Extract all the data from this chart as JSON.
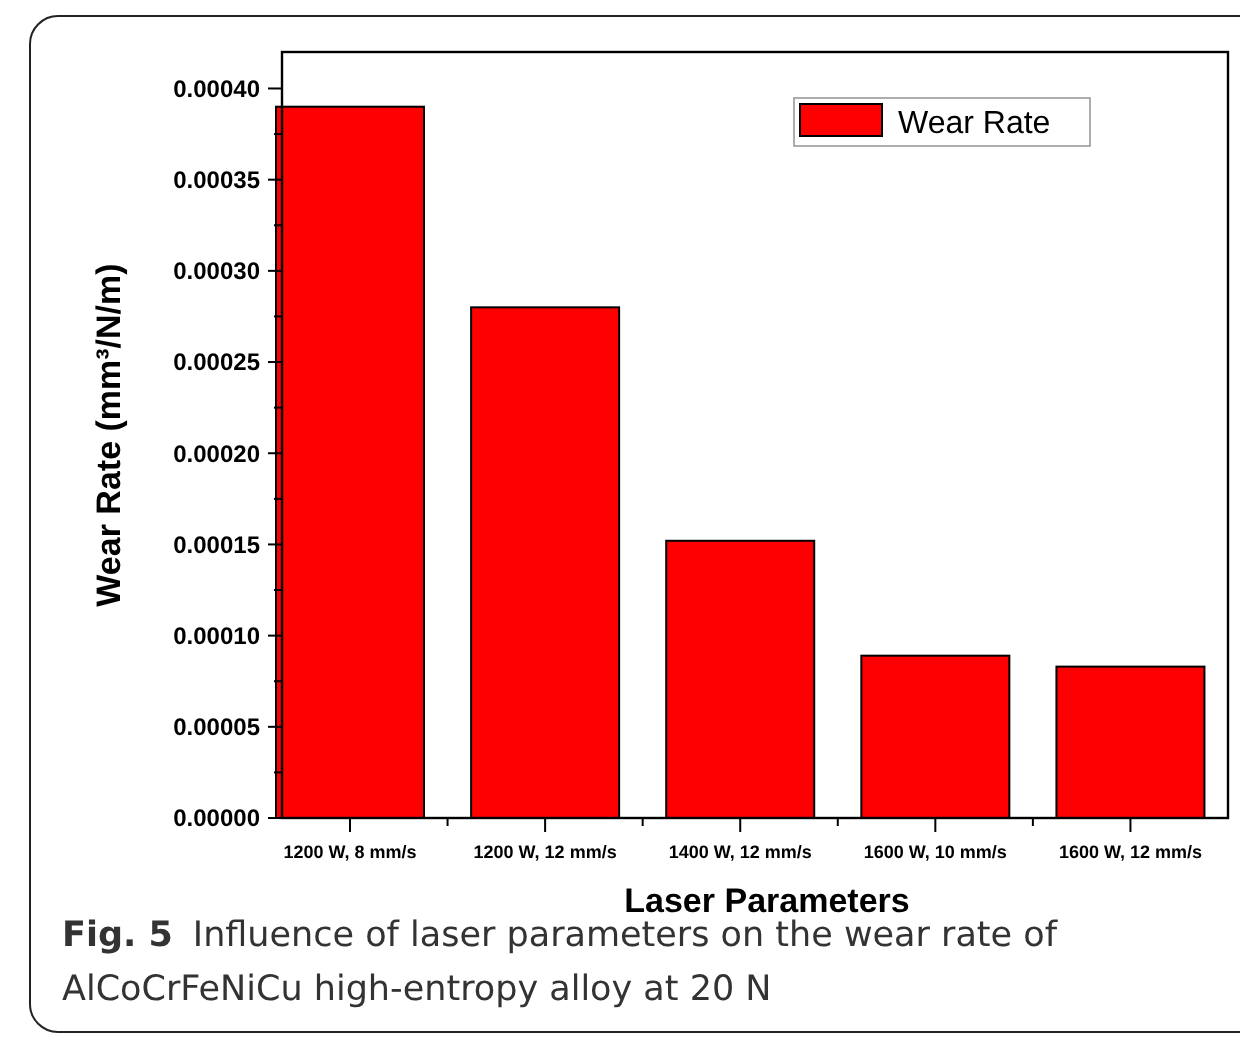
{
  "chart_data": {
    "type": "bar",
    "xlabel": "Laser Parameters",
    "ylabel": "Wear Rate (mm³/N/m)",
    "categories": [
      "1200 W, 8 mm/s",
      "1200 W, 12 mm/s",
      "1400 W, 12 mm/s",
      "1600 W, 10 mm/s",
      "1600 W, 12 mm/s"
    ],
    "series": [
      {
        "name": "Wear Rate",
        "color": "#ff0000",
        "values": [
          0.00039,
          0.00028,
          0.000152,
          8.9e-05,
          8.3e-05
        ]
      }
    ],
    "ylim": [
      0,
      0.00042
    ],
    "yticks": [
      {
        "value": 0,
        "label": "0.00000"
      },
      {
        "value": 2.5e-05,
        "label": null
      },
      {
        "value": 5e-05,
        "label": "0.00005"
      },
      {
        "value": 7.5e-05,
        "label": null
      },
      {
        "value": 0.0001,
        "label": "0.00010"
      },
      {
        "value": 0.000125,
        "label": null
      },
      {
        "value": 0.00015,
        "label": "0.00015"
      },
      {
        "value": 0.000175,
        "label": null
      },
      {
        "value": 0.0002,
        "label": "0.00020"
      },
      {
        "value": 0.000225,
        "label": null
      },
      {
        "value": 0.00025,
        "label": "0.00025"
      },
      {
        "value": 0.000275,
        "label": null
      },
      {
        "value": 0.0003,
        "label": "0.00030"
      },
      {
        "value": 0.000325,
        "label": null
      },
      {
        "value": 0.00035,
        "label": "0.00035"
      },
      {
        "value": 0.000375,
        "label": null
      },
      {
        "value": 0.0004,
        "label": "0.00040"
      }
    ],
    "legend": "top right",
    "grid": false,
    "annotations": [
      "Fig. 5",
      "Influence of laser parameters on the wear rate of",
      "AlCoCrFeNiCu high-entropy alloy at 20 N"
    ]
  }
}
